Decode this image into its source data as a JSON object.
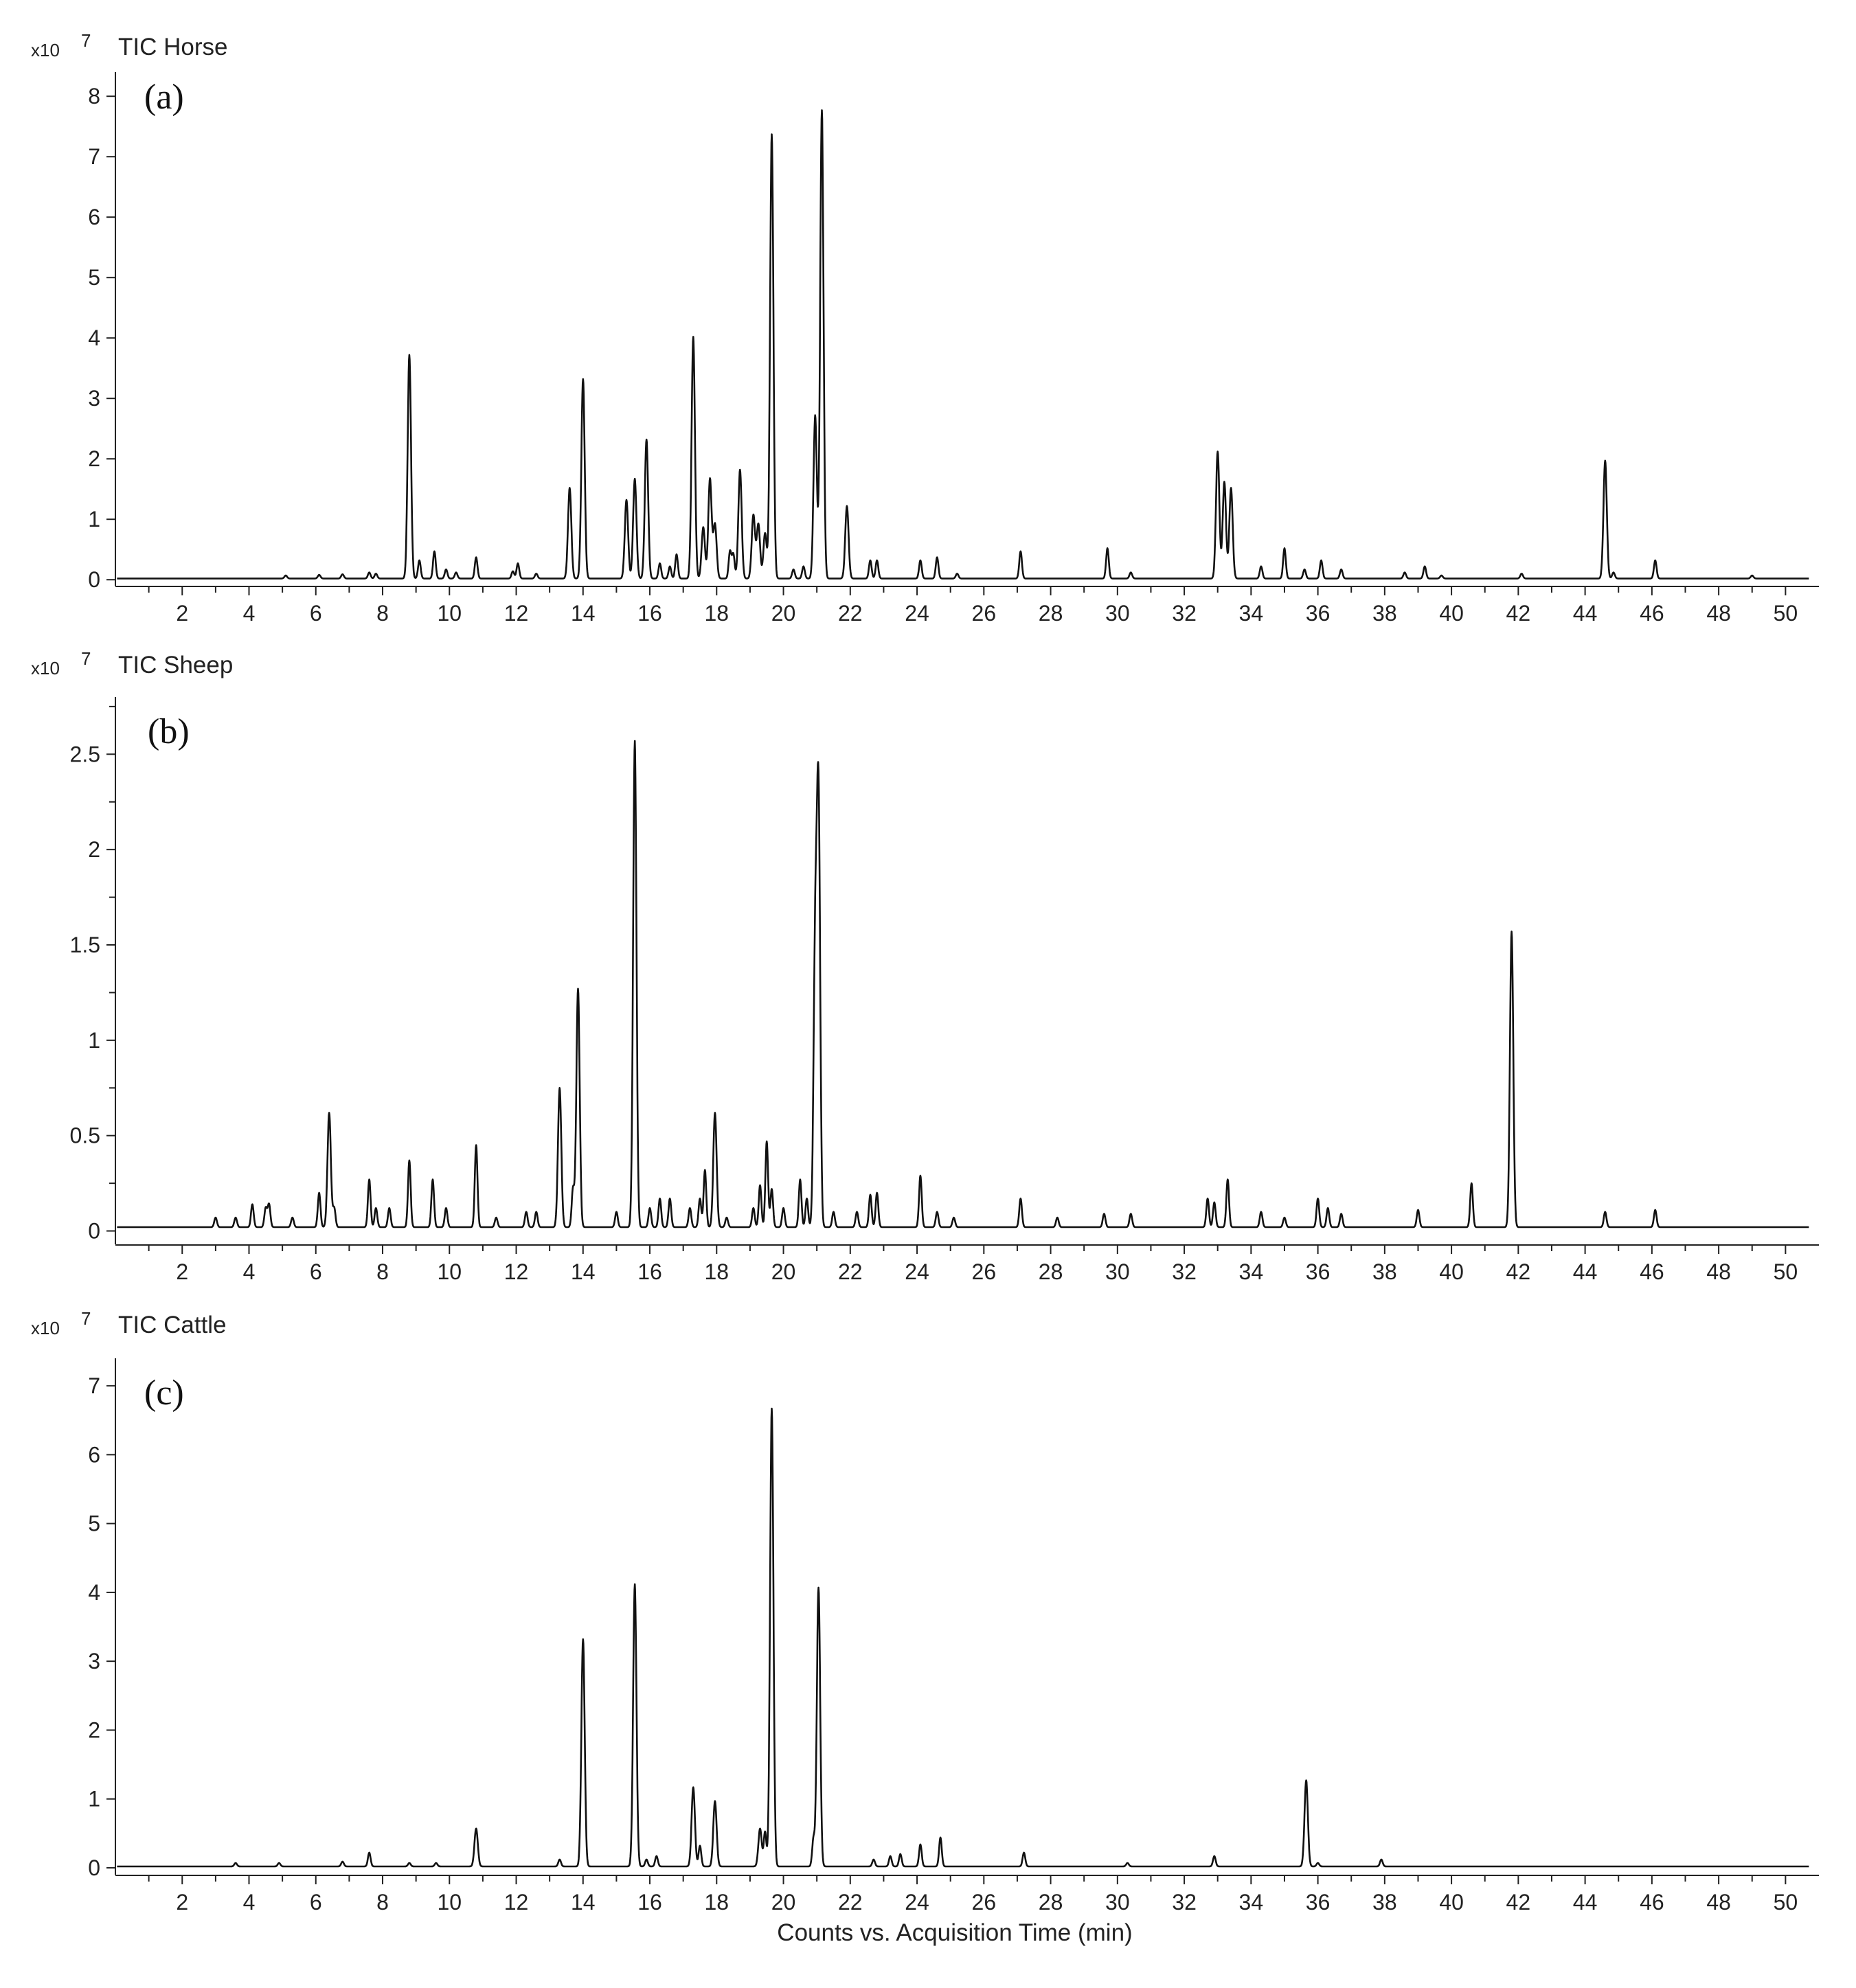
{
  "figure": {
    "xlabel": "Counts vs. Acquisition Time (min)"
  },
  "chart_data": [
    {
      "type": "line",
      "panel_label": "(a)",
      "scale_prefix": "x10",
      "scale_exponent": "7",
      "title": "TIC Horse",
      "xlabel": "",
      "ylabel": "",
      "xlim": [
        0,
        51
      ],
      "ylim": [
        -0.1,
        8.4
      ],
      "x_ticks": [
        2,
        4,
        6,
        8,
        10,
        12,
        14,
        16,
        18,
        20,
        22,
        24,
        26,
        28,
        30,
        32,
        34,
        36,
        38,
        40,
        42,
        44,
        46,
        48,
        50
      ],
      "y_ticks": [
        0,
        1,
        2,
        3,
        4,
        5,
        6,
        7,
        8
      ],
      "baseline": 0.02,
      "peaks": [
        {
          "x": 5.1,
          "y": 0.05
        },
        {
          "x": 6.1,
          "y": 0.06
        },
        {
          "x": 6.8,
          "y": 0.07
        },
        {
          "x": 7.6,
          "y": 0.1
        },
        {
          "x": 7.8,
          "y": 0.08
        },
        {
          "x": 8.8,
          "y": 3.7
        },
        {
          "x": 9.1,
          "y": 0.3
        },
        {
          "x": 9.55,
          "y": 0.45
        },
        {
          "x": 9.9,
          "y": 0.15
        },
        {
          "x": 10.2,
          "y": 0.1
        },
        {
          "x": 10.8,
          "y": 0.35
        },
        {
          "x": 11.9,
          "y": 0.12
        },
        {
          "x": 12.05,
          "y": 0.25
        },
        {
          "x": 12.6,
          "y": 0.08
        },
        {
          "x": 13.6,
          "y": 1.5
        },
        {
          "x": 14.0,
          "y": 3.3
        },
        {
          "x": 15.3,
          "y": 1.3
        },
        {
          "x": 15.55,
          "y": 1.65
        },
        {
          "x": 15.9,
          "y": 2.3
        },
        {
          "x": 16.3,
          "y": 0.25
        },
        {
          "x": 16.6,
          "y": 0.2
        },
        {
          "x": 16.8,
          "y": 0.4
        },
        {
          "x": 17.3,
          "y": 4.0
        },
        {
          "x": 17.6,
          "y": 0.85
        },
        {
          "x": 17.8,
          "y": 1.65
        },
        {
          "x": 17.95,
          "y": 0.9
        },
        {
          "x": 18.4,
          "y": 0.45
        },
        {
          "x": 18.5,
          "y": 0.4
        },
        {
          "x": 18.7,
          "y": 1.8
        },
        {
          "x": 19.1,
          "y": 1.05
        },
        {
          "x": 19.25,
          "y": 0.9
        },
        {
          "x": 19.45,
          "y": 0.75
        },
        {
          "x": 19.65,
          "y": 7.35
        },
        {
          "x": 20.3,
          "y": 0.15
        },
        {
          "x": 20.6,
          "y": 0.2
        },
        {
          "x": 20.95,
          "y": 2.7
        },
        {
          "x": 21.15,
          "y": 7.75
        },
        {
          "x": 21.9,
          "y": 1.2
        },
        {
          "x": 22.6,
          "y": 0.3
        },
        {
          "x": 22.8,
          "y": 0.3
        },
        {
          "x": 24.1,
          "y": 0.3
        },
        {
          "x": 24.6,
          "y": 0.35
        },
        {
          "x": 25.2,
          "y": 0.08
        },
        {
          "x": 27.1,
          "y": 0.45
        },
        {
          "x": 29.7,
          "y": 0.5
        },
        {
          "x": 30.4,
          "y": 0.1
        },
        {
          "x": 33.0,
          "y": 2.1
        },
        {
          "x": 33.2,
          "y": 1.6
        },
        {
          "x": 33.4,
          "y": 1.5
        },
        {
          "x": 34.3,
          "y": 0.2
        },
        {
          "x": 35.0,
          "y": 0.5
        },
        {
          "x": 35.6,
          "y": 0.15
        },
        {
          "x": 36.1,
          "y": 0.3
        },
        {
          "x": 36.7,
          "y": 0.15
        },
        {
          "x": 38.6,
          "y": 0.1
        },
        {
          "x": 39.2,
          "y": 0.2
        },
        {
          "x": 39.7,
          "y": 0.05
        },
        {
          "x": 42.1,
          "y": 0.08
        },
        {
          "x": 44.6,
          "y": 1.95
        },
        {
          "x": 44.85,
          "y": 0.1
        },
        {
          "x": 46.1,
          "y": 0.3
        },
        {
          "x": 49.0,
          "y": 0.05
        }
      ]
    },
    {
      "type": "line",
      "panel_label": "(b)",
      "scale_prefix": "x10",
      "scale_exponent": "7",
      "title": "TIC Sheep",
      "xlabel": "",
      "ylabel": "",
      "xlim": [
        0,
        51
      ],
      "ylim": [
        -0.07,
        2.8
      ],
      "x_ticks": [
        2,
        4,
        6,
        8,
        10,
        12,
        14,
        16,
        18,
        20,
        22,
        24,
        26,
        28,
        30,
        32,
        34,
        36,
        38,
        40,
        42,
        44,
        46,
        48,
        50
      ],
      "y_ticks": [
        0,
        0.5,
        1,
        1.5,
        2,
        2.5
      ],
      "y_minor_ticks": [
        0.25,
        0.75,
        1.25,
        1.75,
        2.25,
        2.75
      ],
      "baseline": 0.02,
      "peaks": [
        {
          "x": 3.0,
          "y": 0.05
        },
        {
          "x": 3.6,
          "y": 0.05
        },
        {
          "x": 4.1,
          "y": 0.12
        },
        {
          "x": 4.5,
          "y": 0.1
        },
        {
          "x": 4.6,
          "y": 0.12
        },
        {
          "x": 5.3,
          "y": 0.05
        },
        {
          "x": 6.1,
          "y": 0.18
        },
        {
          "x": 6.4,
          "y": 0.6
        },
        {
          "x": 6.55,
          "y": 0.1
        },
        {
          "x": 7.6,
          "y": 0.25
        },
        {
          "x": 7.8,
          "y": 0.1
        },
        {
          "x": 8.2,
          "y": 0.1
        },
        {
          "x": 8.8,
          "y": 0.35
        },
        {
          "x": 9.5,
          "y": 0.25
        },
        {
          "x": 9.9,
          "y": 0.1
        },
        {
          "x": 10.8,
          "y": 0.43
        },
        {
          "x": 11.4,
          "y": 0.05
        },
        {
          "x": 12.3,
          "y": 0.08
        },
        {
          "x": 12.6,
          "y": 0.08
        },
        {
          "x": 13.3,
          "y": 0.73
        },
        {
          "x": 13.7,
          "y": 0.2
        },
        {
          "x": 13.85,
          "y": 1.25
        },
        {
          "x": 15.0,
          "y": 0.08
        },
        {
          "x": 15.55,
          "y": 2.55
        },
        {
          "x": 16.0,
          "y": 0.1
        },
        {
          "x": 16.3,
          "y": 0.15
        },
        {
          "x": 16.6,
          "y": 0.15
        },
        {
          "x": 17.2,
          "y": 0.1
        },
        {
          "x": 17.5,
          "y": 0.15
        },
        {
          "x": 17.65,
          "y": 0.3
        },
        {
          "x": 17.95,
          "y": 0.6
        },
        {
          "x": 18.3,
          "y": 0.05
        },
        {
          "x": 19.1,
          "y": 0.1
        },
        {
          "x": 19.3,
          "y": 0.22
        },
        {
          "x": 19.5,
          "y": 0.45
        },
        {
          "x": 19.65,
          "y": 0.2
        },
        {
          "x": 20.0,
          "y": 0.1
        },
        {
          "x": 20.5,
          "y": 0.25
        },
        {
          "x": 20.7,
          "y": 0.15
        },
        {
          "x": 20.95,
          "y": 1.43
        },
        {
          "x": 21.05,
          "y": 2.2
        },
        {
          "x": 21.5,
          "y": 0.08
        },
        {
          "x": 22.2,
          "y": 0.08
        },
        {
          "x": 22.6,
          "y": 0.17
        },
        {
          "x": 22.8,
          "y": 0.18
        },
        {
          "x": 24.1,
          "y": 0.27
        },
        {
          "x": 24.6,
          "y": 0.08
        },
        {
          "x": 25.1,
          "y": 0.05
        },
        {
          "x": 27.1,
          "y": 0.15
        },
        {
          "x": 28.2,
          "y": 0.05
        },
        {
          "x": 29.6,
          "y": 0.07
        },
        {
          "x": 30.4,
          "y": 0.07
        },
        {
          "x": 32.7,
          "y": 0.15
        },
        {
          "x": 32.9,
          "y": 0.13
        },
        {
          "x": 33.3,
          "y": 0.25
        },
        {
          "x": 34.3,
          "y": 0.08
        },
        {
          "x": 35.0,
          "y": 0.05
        },
        {
          "x": 36.0,
          "y": 0.15
        },
        {
          "x": 36.3,
          "y": 0.1
        },
        {
          "x": 36.7,
          "y": 0.07
        },
        {
          "x": 39.0,
          "y": 0.09
        },
        {
          "x": 40.6,
          "y": 0.23
        },
        {
          "x": 41.8,
          "y": 1.55
        },
        {
          "x": 44.6,
          "y": 0.08
        },
        {
          "x": 46.1,
          "y": 0.09
        }
      ]
    },
    {
      "type": "line",
      "panel_label": "(c)",
      "scale_prefix": "x10",
      "scale_exponent": "7",
      "title": "TIC Cattle",
      "xlabel": "",
      "ylabel": "",
      "xlim": [
        0,
        51
      ],
      "ylim": [
        -0.1,
        7.4
      ],
      "x_ticks": [
        2,
        4,
        6,
        8,
        10,
        12,
        14,
        16,
        18,
        20,
        22,
        24,
        26,
        28,
        30,
        32,
        34,
        36,
        38,
        40,
        42,
        44,
        46,
        48,
        50
      ],
      "y_ticks": [
        0,
        1,
        2,
        3,
        4,
        5,
        6,
        7
      ],
      "baseline": 0.02,
      "peaks": [
        {
          "x": 3.6,
          "y": 0.05
        },
        {
          "x": 4.9,
          "y": 0.05
        },
        {
          "x": 6.8,
          "y": 0.07
        },
        {
          "x": 7.6,
          "y": 0.2
        },
        {
          "x": 8.8,
          "y": 0.05
        },
        {
          "x": 9.6,
          "y": 0.05
        },
        {
          "x": 10.8,
          "y": 0.55
        },
        {
          "x": 13.3,
          "y": 0.1
        },
        {
          "x": 14.0,
          "y": 3.3
        },
        {
          "x": 15.55,
          "y": 4.1
        },
        {
          "x": 15.9,
          "y": 0.1
        },
        {
          "x": 16.2,
          "y": 0.15
        },
        {
          "x": 17.3,
          "y": 1.15
        },
        {
          "x": 17.5,
          "y": 0.3
        },
        {
          "x": 17.95,
          "y": 0.95
        },
        {
          "x": 19.3,
          "y": 0.55
        },
        {
          "x": 19.45,
          "y": 0.5
        },
        {
          "x": 19.65,
          "y": 6.65
        },
        {
          "x": 20.9,
          "y": 0.4
        },
        {
          "x": 21.05,
          "y": 4.05
        },
        {
          "x": 22.7,
          "y": 0.1
        },
        {
          "x": 23.2,
          "y": 0.15
        },
        {
          "x": 23.5,
          "y": 0.18
        },
        {
          "x": 24.1,
          "y": 0.32
        },
        {
          "x": 24.7,
          "y": 0.42
        },
        {
          "x": 27.2,
          "y": 0.2
        },
        {
          "x": 30.3,
          "y": 0.05
        },
        {
          "x": 32.9,
          "y": 0.15
        },
        {
          "x": 35.65,
          "y": 1.25
        },
        {
          "x": 36.0,
          "y": 0.05
        },
        {
          "x": 37.9,
          "y": 0.1
        }
      ]
    }
  ]
}
